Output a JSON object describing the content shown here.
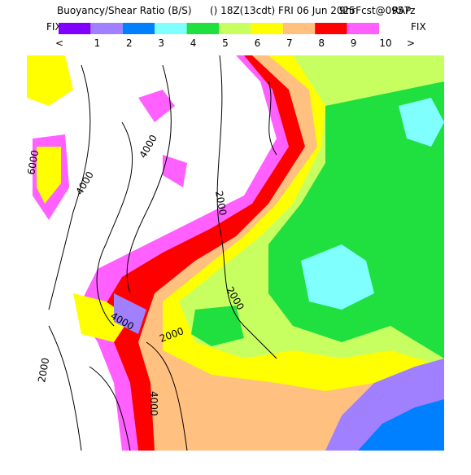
{
  "header": {
    "title": "Buoyancy/Shear Ratio (B/S)",
    "extra": "() 18Z(13cdt) FRI 06 Jun 2025",
    "forecast": "9hrFcst@0957z",
    "model": "RAP"
  },
  "legend": {
    "left": "FIX",
    "right": "FIX",
    "prev": "<",
    "next": ">",
    "colors": [
      "#8000ff",
      "#a080ff",
      "#0080ff",
      "#80ffff",
      "#20e040",
      "#c8ff60",
      "#ffff00",
      "#ffc080",
      "#ff0000",
      "#ff60ff"
    ],
    "labels": [
      "1",
      "2",
      "3",
      "4",
      "5",
      "6",
      "7",
      "8",
      "9",
      "10"
    ]
  },
  "contour_labels": [
    "6000",
    "4000",
    "4000",
    "2000",
    "2000",
    "2000",
    "4000",
    "4000",
    "2000"
  ]
}
